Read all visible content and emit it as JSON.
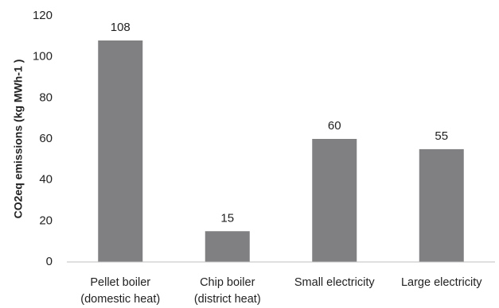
{
  "chart_data": {
    "type": "bar",
    "title": "",
    "xlabel": "",
    "ylabel": "CO2eq emissions  (kg MWh-1 )",
    "categories": [
      [
        "Pellet boiler",
        "(domestic heat)"
      ],
      [
        "Chip boiler",
        "(district heat)"
      ],
      [
        "Small electricity"
      ],
      [
        "Large electricity"
      ]
    ],
    "values": [
      108,
      15,
      60,
      55
    ],
    "data_labels": [
      "108",
      "15",
      "60",
      "55"
    ],
    "ylim": [
      0,
      120
    ],
    "yticks": [
      0,
      20,
      40,
      60,
      80,
      100,
      120
    ],
    "grid": false,
    "legend": "none",
    "colors": {
      "bar": "#808083",
      "axis": "#bfbfbf"
    }
  }
}
